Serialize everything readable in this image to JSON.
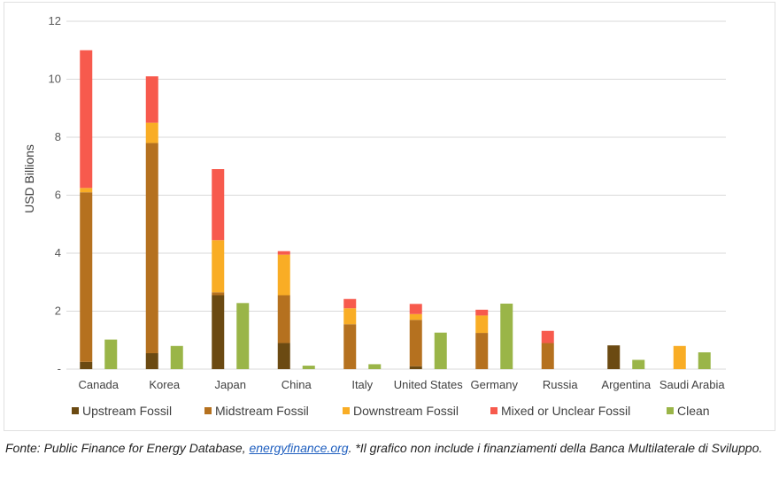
{
  "chart_data": {
    "type": "bar",
    "stacked": true,
    "ylabel": "USD Billions",
    "xlabel": "",
    "ylim": [
      0,
      12
    ],
    "y_ticks": [
      {
        "value": 0,
        "label": "-"
      },
      {
        "value": 2,
        "label": "2"
      },
      {
        "value": 4,
        "label": "4"
      },
      {
        "value": 6,
        "label": "6"
      },
      {
        "value": 8,
        "label": "8"
      },
      {
        "value": 10,
        "label": "10"
      },
      {
        "value": 12,
        "label": "12"
      }
    ],
    "grid": true,
    "legend_position": "bottom",
    "categories": [
      "Canada",
      "Korea",
      "Japan",
      "China",
      "Italy",
      "United States",
      "Germany",
      "Russia",
      "Argentina",
      "Saudi Arabia"
    ],
    "series": [
      {
        "name": "Upstream Fossil",
        "color": "#6b4a12",
        "stack": "fossil",
        "values": [
          0.25,
          0.55,
          2.55,
          0.9,
          0,
          0.1,
          0,
          0,
          0.82,
          0
        ]
      },
      {
        "name": "Midstream Fossil",
        "color": "#b5711f",
        "stack": "fossil",
        "values": [
          5.85,
          7.25,
          0.1,
          1.65,
          1.55,
          1.6,
          1.25,
          0.9,
          0,
          0
        ]
      },
      {
        "name": "Downstream Fossil",
        "color": "#f9ad25",
        "stack": "fossil",
        "values": [
          0.15,
          0.7,
          1.8,
          1.4,
          0.55,
          0.2,
          0.6,
          0,
          0,
          0.8
        ]
      },
      {
        "name": "Mixed or Unclear Fossil",
        "color": "#f75a4d",
        "stack": "fossil",
        "values": [
          4.75,
          1.6,
          2.45,
          0.12,
          0.32,
          0.35,
          0.2,
          0.42,
          0,
          0
        ]
      },
      {
        "name": "Clean",
        "color": "#9ab548",
        "stack": "clean",
        "values": [
          1.02,
          0.8,
          2.28,
          0.12,
          0.17,
          1.26,
          2.26,
          0,
          0.32,
          0.58
        ]
      }
    ]
  },
  "caption": {
    "prefix": "Fonte: Public Finance for Energy Database, ",
    "link": "energyfinance.org",
    "suffix": ". *Il grafico non include i finanziamenti della Banca Multilaterale di Sviluppo."
  }
}
